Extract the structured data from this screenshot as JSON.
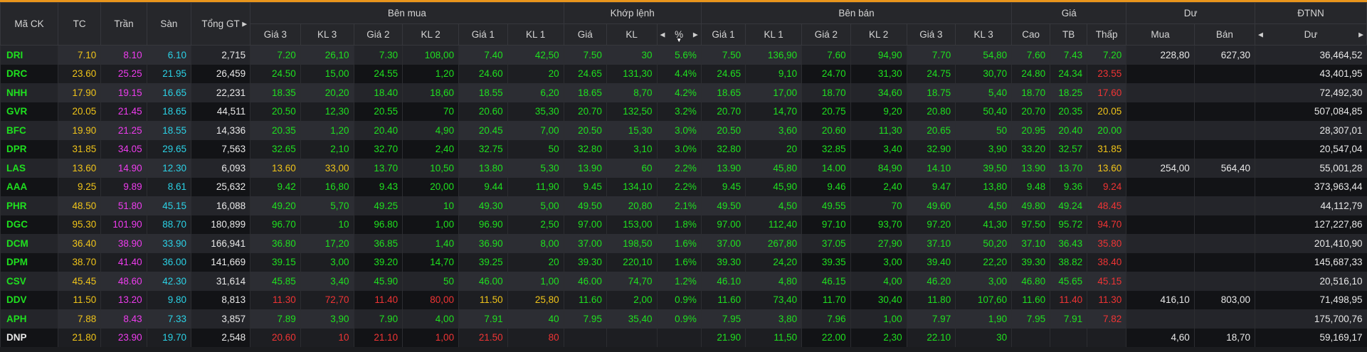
{
  "header": {
    "ma_ck": "Mã CK",
    "tc": "TC",
    "tran": "Trần",
    "san": "Sàn",
    "tong_gt": "Tổng GT",
    "ben_mua": "Bên mua",
    "khop_lenh": "Khớp lệnh",
    "ben_ban": "Bên bán",
    "gia": "Giá",
    "du": "Dư",
    "dtnn": "ĐTNN",
    "gia3": "Giá 3",
    "kl3": "KL 3",
    "gia2": "Giá 2",
    "kl2": "KL 2",
    "gia1": "Giá 1",
    "kl1": "KL 1",
    "kgia": "Giá",
    "kkl": "KL",
    "kpct": "%",
    "cao": "Cao",
    "tb": "TB",
    "thap": "Thấp",
    "mua": "Mua",
    "ban": "Bán",
    "du2": "Dư"
  },
  "rows": [
    {
      "sym": "DRI",
      "tc": "7.10",
      "tran": "8.10",
      "san": "6.10",
      "tgt": "2,715",
      "b3": "7.20",
      "bk3": "26,10",
      "b2": "7.30",
      "bk2": "108,00",
      "b1": "7.40",
      "bk1": "42,50",
      "kg": "7.50",
      "kkl": "30",
      "kp": "5.6%",
      "s1": "7.50",
      "sk1": "136,90",
      "s2": "7.60",
      "sk2": "94,90",
      "s3": "7.70",
      "sk3": "54,80",
      "cao": "7.60",
      "tb": "7.43",
      "thap": "7.20",
      "dm": "228,80",
      "db": "627,30",
      "nn": "36,464,52"
    },
    {
      "sym": "DRC",
      "tc": "23.60",
      "tran": "25.25",
      "san": "21.95",
      "tgt": "26,459",
      "b3": "24.50",
      "bk3": "15,00",
      "b2": "24.55",
      "bk2": "1,20",
      "b1": "24.60",
      "bk1": "20",
      "kg": "24.65",
      "kkl": "131,30",
      "kp": "4.4%",
      "s1": "24.65",
      "sk1": "9,10",
      "s2": "24.70",
      "sk2": "31,30",
      "s3": "24.75",
      "sk3": "30,70",
      "cao": "24.80",
      "tb": "24.34",
      "thap": "23.55",
      "dm": "",
      "db": "",
      "nn": "43,401,95"
    },
    {
      "sym": "NHH",
      "tc": "17.90",
      "tran": "19.15",
      "san": "16.65",
      "tgt": "22,231",
      "b3": "18.35",
      "bk3": "20,20",
      "b2": "18.40",
      "bk2": "18,60",
      "b1": "18.55",
      "bk1": "6,20",
      "kg": "18.65",
      "kkl": "8,70",
      "kp": "4.2%",
      "s1": "18.65",
      "sk1": "17,00",
      "s2": "18.70",
      "sk2": "34,60",
      "s3": "18.75",
      "sk3": "5,40",
      "cao": "18.70",
      "tb": "18.25",
      "thap": "17.60",
      "dm": "",
      "db": "",
      "nn": "72,492,30"
    },
    {
      "sym": "GVR",
      "tc": "20.05",
      "tran": "21.45",
      "san": "18.65",
      "tgt": "44,511",
      "b3": "20.50",
      "bk3": "12,30",
      "b2": "20.55",
      "bk2": "70",
      "b1": "20.60",
      "bk1": "35,30",
      "kg": "20.70",
      "kkl": "132,50",
      "kp": "3.2%",
      "s1": "20.70",
      "sk1": "14,70",
      "s2": "20.75",
      "sk2": "9,20",
      "s3": "20.80",
      "sk3": "50,40",
      "cao": "20.70",
      "tb": "20.35",
      "thap": "20.05",
      "dm": "",
      "db": "",
      "nn": "507,084,85"
    },
    {
      "sym": "BFC",
      "tc": "19.90",
      "tran": "21.25",
      "san": "18.55",
      "tgt": "14,336",
      "b3": "20.35",
      "bk3": "1,20",
      "b2": "20.40",
      "bk2": "4,90",
      "b1": "20.45",
      "bk1": "7,00",
      "kg": "20.50",
      "kkl": "15,30",
      "kp": "3.0%",
      "s1": "20.50",
      "sk1": "3,60",
      "s2": "20.60",
      "sk2": "11,30",
      "s3": "20.65",
      "sk3": "50",
      "cao": "20.95",
      "tb": "20.40",
      "thap": "20.00",
      "dm": "",
      "db": "",
      "nn": "28,307,01"
    },
    {
      "sym": "DPR",
      "tc": "31.85",
      "tran": "34.05",
      "san": "29.65",
      "tgt": "7,563",
      "b3": "32.65",
      "bk3": "2,10",
      "b2": "32.70",
      "bk2": "2,40",
      "b1": "32.75",
      "bk1": "50",
      "kg": "32.80",
      "kkl": "3,10",
      "kp": "3.0%",
      "s1": "32.80",
      "sk1": "20",
      "s2": "32.85",
      "sk2": "3,40",
      "s3": "32.90",
      "sk3": "3,90",
      "cao": "33.20",
      "tb": "32.57",
      "thap": "31.85",
      "dm": "",
      "db": "",
      "nn": "20,547,04"
    },
    {
      "sym": "LAS",
      "tc": "13.60",
      "tran": "14.90",
      "san": "12.30",
      "tgt": "6,093",
      "b3": "13.60",
      "bk3": "33,00",
      "b2": "13.70",
      "bk2": "10,50",
      "b1": "13.80",
      "bk1": "5,30",
      "kg": "13.90",
      "kkl": "60",
      "kp": "2.2%",
      "s1": "13.90",
      "sk1": "45,80",
      "s2": "14.00",
      "sk2": "84,90",
      "s3": "14.10",
      "sk3": "39,50",
      "cao": "13.90",
      "tb": "13.70",
      "thap": "13.60",
      "dm": "254,00",
      "db": "564,40",
      "nn": "55,001,28"
    },
    {
      "sym": "AAA",
      "tc": "9.25",
      "tran": "9.89",
      "san": "8.61",
      "tgt": "25,632",
      "b3": "9.42",
      "bk3": "16,80",
      "b2": "9.43",
      "bk2": "20,00",
      "b1": "9.44",
      "bk1": "11,90",
      "kg": "9.45",
      "kkl": "134,10",
      "kp": "2.2%",
      "s1": "9.45",
      "sk1": "45,90",
      "s2": "9.46",
      "sk2": "2,40",
      "s3": "9.47",
      "sk3": "13,80",
      "cao": "9.48",
      "tb": "9.36",
      "thap": "9.24",
      "dm": "",
      "db": "",
      "nn": "373,963,44"
    },
    {
      "sym": "PHR",
      "tc": "48.50",
      "tran": "51.80",
      "san": "45.15",
      "tgt": "16,088",
      "b3": "49.20",
      "bk3": "5,70",
      "b2": "49.25",
      "bk2": "10",
      "b1": "49.30",
      "bk1": "5,00",
      "kg": "49.50",
      "kkl": "20,80",
      "kp": "2.1%",
      "s1": "49.50",
      "sk1": "4,50",
      "s2": "49.55",
      "sk2": "70",
      "s3": "49.60",
      "sk3": "4,50",
      "cao": "49.80",
      "tb": "49.24",
      "thap": "48.45",
      "dm": "",
      "db": "",
      "nn": "44,112,79"
    },
    {
      "sym": "DGC",
      "tc": "95.30",
      "tran": "101.90",
      "san": "88.70",
      "tgt": "180,899",
      "b3": "96.70",
      "bk3": "10",
      "b2": "96.80",
      "bk2": "1,00",
      "b1": "96.90",
      "bk1": "2,50",
      "kg": "97.00",
      "kkl": "153,00",
      "kp": "1.8%",
      "s1": "97.00",
      "sk1": "112,40",
      "s2": "97.10",
      "sk2": "93,70",
      "s3": "97.20",
      "sk3": "41,30",
      "cao": "97.50",
      "tb": "95.72",
      "thap": "94.70",
      "dm": "",
      "db": "",
      "nn": "127,227,86"
    },
    {
      "sym": "DCM",
      "tc": "36.40",
      "tran": "38.90",
      "san": "33.90",
      "tgt": "166,941",
      "b3": "36.80",
      "bk3": "17,20",
      "b2": "36.85",
      "bk2": "1,40",
      "b1": "36.90",
      "bk1": "8,00",
      "kg": "37.00",
      "kkl": "198,50",
      "kp": "1.6%",
      "s1": "37.00",
      "sk1": "267,80",
      "s2": "37.05",
      "sk2": "27,90",
      "s3": "37.10",
      "sk3": "50,20",
      "cao": "37.10",
      "tb": "36.43",
      "thap": "35.80",
      "dm": "",
      "db": "",
      "nn": "201,410,90"
    },
    {
      "sym": "DPM",
      "tc": "38.70",
      "tran": "41.40",
      "san": "36.00",
      "tgt": "141,669",
      "b3": "39.15",
      "bk3": "3,00",
      "b2": "39.20",
      "bk2": "14,70",
      "b1": "39.25",
      "bk1": "20",
      "kg": "39.30",
      "kkl": "220,10",
      "kp": "1.6%",
      "s1": "39.30",
      "sk1": "24,20",
      "s2": "39.35",
      "sk2": "3,00",
      "s3": "39.40",
      "sk3": "22,20",
      "cao": "39.30",
      "tb": "38.82",
      "thap": "38.40",
      "dm": "",
      "db": "",
      "nn": "145,687,33"
    },
    {
      "sym": "CSV",
      "tc": "45.45",
      "tran": "48.60",
      "san": "42.30",
      "tgt": "31,614",
      "b3": "45.85",
      "bk3": "3,40",
      "b2": "45.90",
      "bk2": "50",
      "b1": "46.00",
      "bk1": "1,00",
      "kg": "46.00",
      "kkl": "74,70",
      "kp": "1.2%",
      "s1": "46.10",
      "sk1": "4,80",
      "s2": "46.15",
      "sk2": "4,00",
      "s3": "46.20",
      "sk3": "3,00",
      "cao": "46.80",
      "tb": "45.65",
      "thap": "45.15",
      "dm": "",
      "db": "",
      "nn": "20,516,10"
    },
    {
      "sym": "DDV",
      "tc": "11.50",
      "tran": "13.20",
      "san": "9.80",
      "tgt": "8,813",
      "b3": "11.30",
      "bk3": "72,70",
      "b2": "11.40",
      "bk2": "80,00",
      "b1": "11.50",
      "bk1": "25,80",
      "kg": "11.60",
      "kkl": "2,00",
      "kp": "0.9%",
      "s1": "11.60",
      "sk1": "73,40",
      "s2": "11.70",
      "sk2": "30,40",
      "s3": "11.80",
      "sk3": "107,60",
      "cao": "11.60",
      "tb": "11.40",
      "thap": "11.30",
      "dm": "416,10",
      "db": "803,00",
      "nn": "71,498,95"
    },
    {
      "sym": "APH",
      "tc": "7.88",
      "tran": "8.43",
      "san": "7.33",
      "tgt": "3,857",
      "b3": "7.89",
      "bk3": "3,90",
      "b2": "7.90",
      "bk2": "4,00",
      "b1": "7.91",
      "bk1": "40",
      "kg": "7.95",
      "kkl": "35,40",
      "kp": "0.9%",
      "s1": "7.95",
      "sk1": "3,80",
      "s2": "7.96",
      "sk2": "1,00",
      "s3": "7.97",
      "sk3": "1,90",
      "cao": "7.95",
      "tb": "7.91",
      "thap": "7.82",
      "dm": "",
      "db": "",
      "nn": "175,700,76"
    },
    {
      "sym": "DNP",
      "tc": "21.80",
      "tran": "23.90",
      "san": "19.70",
      "tgt": "2,548",
      "b3": "20.60",
      "bk3": "10",
      "b2": "21.10",
      "bk2": "1,00",
      "b1": "21.50",
      "bk1": "80",
      "kg": "",
      "kkl": "",
      "kp": "",
      "s1": "21.90",
      "sk1": "11,50",
      "s2": "22.00",
      "sk2": "2,30",
      "s3": "22.10",
      "sk3": "30",
      "cao": "",
      "tb": "",
      "thap": "",
      "dm": "4,60",
      "db": "18,70",
      "nn": "59,169,17"
    }
  ],
  "colors": {
    "sym": [
      "g",
      "g",
      "g",
      "g",
      "g",
      "g",
      "g",
      "g",
      "g",
      "g",
      "g",
      "g",
      "g",
      "g",
      "g",
      "w"
    ],
    "b3": [
      "g",
      "g",
      "g",
      "g",
      "g",
      "g",
      "y",
      "g",
      "g",
      "g",
      "g",
      "g",
      "g",
      "r",
      "g",
      "r"
    ],
    "b2": [
      "g",
      "g",
      "g",
      "g",
      "g",
      "g",
      "g",
      "g",
      "g",
      "g",
      "g",
      "g",
      "g",
      "r",
      "g",
      "r"
    ],
    "b1": [
      "g",
      "g",
      "g",
      "g",
      "g",
      "g",
      "g",
      "g",
      "g",
      "g",
      "g",
      "g",
      "g",
      "y",
      "g",
      "r"
    ],
    "k": [
      "g",
      "g",
      "g",
      "g",
      "g",
      "g",
      "g",
      "g",
      "g",
      "g",
      "g",
      "g",
      "g",
      "g",
      "g",
      "w"
    ],
    "s": [
      "g",
      "g",
      "g",
      "g",
      "g",
      "g",
      "g",
      "g",
      "g",
      "g",
      "g",
      "g",
      "g",
      "g",
      "g",
      "g"
    ],
    "cao": [
      "g",
      "g",
      "g",
      "g",
      "g",
      "g",
      "g",
      "g",
      "g",
      "g",
      "g",
      "g",
      "g",
      "g",
      "g",
      "w"
    ],
    "tb": [
      "g",
      "g",
      "g",
      "g",
      "g",
      "g",
      "g",
      "g",
      "g",
      "g",
      "g",
      "g",
      "g",
      "r",
      "g",
      "w"
    ],
    "thap": [
      "g",
      "r",
      "r",
      "y",
      "g",
      "y",
      "y",
      "r",
      "r",
      "r",
      "r",
      "r",
      "r",
      "r",
      "r",
      "w"
    ]
  },
  "theme": {
    "green": "#1fe01f",
    "yellow": "#f0c419",
    "red": "#f03434",
    "magenta": "#ee3cee",
    "cyan": "#2bd2e6",
    "accent": "#e8951c"
  },
  "icons": [
    "sort-left-icon",
    "sort-right-icon",
    "sort-down-icon"
  ]
}
